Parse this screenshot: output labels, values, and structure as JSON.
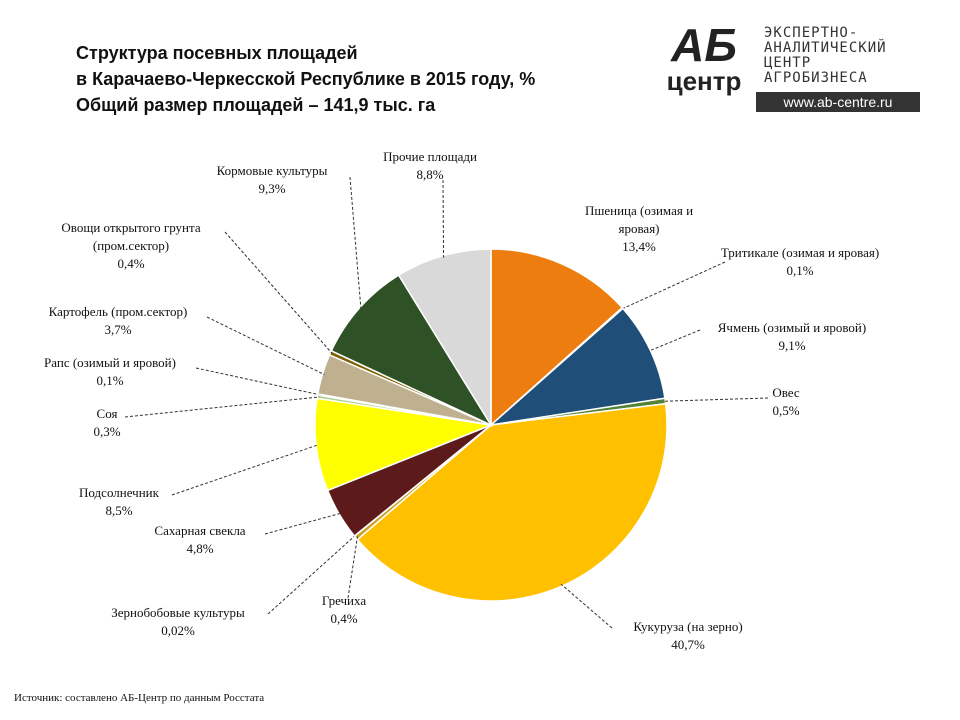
{
  "chart_data": {
    "type": "pie",
    "title": [
      "Структура посевных площадей",
      "в Карачаево-Черкесской Республике в 2015 году, %",
      "Общий размер площадей – 141,9 тыс. га"
    ],
    "categories": [
      "Пшеница (озимая и яровая)",
      "Тритикале (озимая и яровая)",
      "Ячмень (озимый и яровой)",
      "Овес",
      "Кукуруза (на зерно)",
      "Гречиха",
      "Зернобобовые культуры",
      "Сахарная свекла",
      "Подсолнечник",
      "Соя",
      "Рапс (озимый и яровой)",
      "Картофель (пром.сектор)",
      "Овощи открытого грунта (пром.сектор)",
      "Кормовые культуры",
      "Прочие площади"
    ],
    "values": [
      13.4,
      0.1,
      9.1,
      0.5,
      40.7,
      0.4,
      0.02,
      4.8,
      8.5,
      0.3,
      0.1,
      3.7,
      0.4,
      9.3,
      8.8
    ],
    "value_labels": [
      "13,4%",
      "0,1%",
      "9,1%",
      "0,5%",
      "40,7%",
      "0,4%",
      "0,02%",
      "4,8%",
      "8,5%",
      "0,3%",
      "0,1%",
      "3,7%",
      "0,4%",
      "9,3%",
      "8,8%"
    ],
    "colors": [
      "#ed7d0e",
      "#8faadc",
      "#1f4e79",
      "#548235",
      "#ffc000",
      "#c9a227",
      "#9e480e",
      "#5c1a1a",
      "#ffff00",
      "#a9d18e",
      "#4472c4",
      "#bfb08f",
      "#7f6000",
      "#2e5126",
      "#d9d9d9"
    ],
    "source": "Источник: составлено АБ-Центр по данным Росстата"
  },
  "logo": {
    "mark_top": "АБ",
    "mark_bottom": "центр",
    "lines": [
      "ЭКСПЕРТНО-",
      "АНАЛИТИЧЕСКИЙ",
      "ЦЕНТР",
      "АГРОБИЗНЕСА"
    ],
    "url": "www.ab-centre.ru"
  }
}
